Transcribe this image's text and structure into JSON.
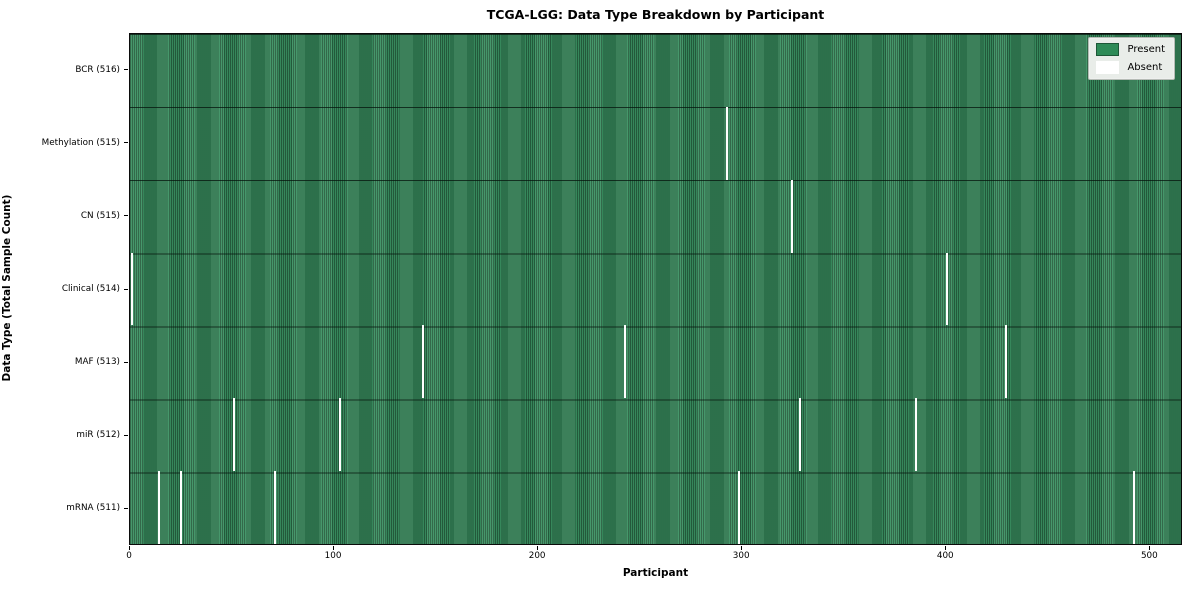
{
  "chart_data": {
    "type": "heatmap",
    "title": "TCGA-LGG: Data Type Breakdown by Participant",
    "xlabel": "Participant",
    "ylabel": "Data Type (Total Sample Count)",
    "x_ticks": [
      0,
      100,
      200,
      300,
      400,
      500
    ],
    "x_max": 516,
    "total_participants": 516,
    "rows": [
      {
        "label": "BCR (516)",
        "data_type": "BCR",
        "sample_count": 516,
        "absent_participants": []
      },
      {
        "label": "Methylation (515)",
        "data_type": "Methylation",
        "sample_count": 515,
        "absent_participants": [
          293
        ]
      },
      {
        "label": "CN (515)",
        "data_type": "CN",
        "sample_count": 515,
        "absent_participants": [
          325
        ]
      },
      {
        "label": "Clinical (514)",
        "data_type": "Clinical",
        "sample_count": 514,
        "absent_participants": [
          1,
          401
        ]
      },
      {
        "label": "MAF (513)",
        "data_type": "MAF",
        "sample_count": 513,
        "absent_participants": [
          144,
          243,
          430
        ]
      },
      {
        "label": "miR (512)",
        "data_type": "miR",
        "sample_count": 512,
        "absent_participants": [
          51,
          103,
          329,
          386
        ]
      },
      {
        "label": "mRNA (511)",
        "data_type": "mRNA",
        "sample_count": 511,
        "absent_participants": [
          14,
          25,
          71,
          299,
          493
        ]
      }
    ],
    "legend": [
      {
        "label": "Present",
        "color": "#2e8b57",
        "edge": "#1d5737"
      },
      {
        "label": "Absent",
        "color": "#ffffff",
        "edge": "#ffffff"
      }
    ],
    "colors": {
      "present_fill": "#2e8b57",
      "present_edge": "#26603f",
      "absent": "#ffffff",
      "legend_background": "#e9ede9",
      "plot_border": "#0b0b0b"
    },
    "layout": {
      "grid": false,
      "legend_position": "upper right"
    }
  }
}
